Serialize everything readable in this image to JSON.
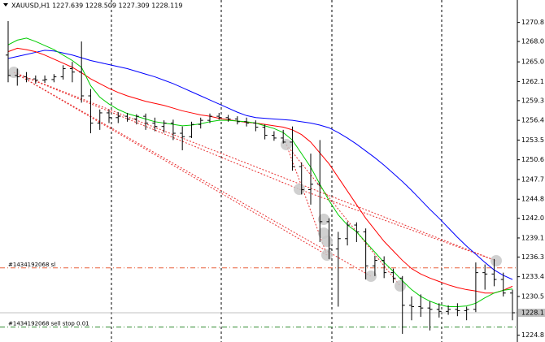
{
  "chart_data": {
    "type": "ohlc",
    "title": "XAUUSD,H1  1227.639 1228.509 1227.309 1228.119",
    "ylim": [
      1223.8,
      1274.1
    ],
    "yticks": [
      1270.8,
      {
        "value": 1268,
        "label": "1268.0"
      },
      {
        "value": 1265,
        "label": "1265.0"
      },
      1262.1,
      1259.3,
      1256.4,
      1253.5,
      1250.6,
      1247.7,
      1244.8,
      {
        "value": 1242,
        "label": "1242.0"
      },
      1239.1,
      1236.3,
      1233.4,
      1230.5,
      1224.8
    ],
    "current_price": 1228.1,
    "bar_color": "#000000",
    "ohlc": [
      [
        1266,
        1271,
        1262,
        1263
      ],
      [
        1263,
        1264,
        1261.5,
        1262.8
      ],
      [
        1262.8,
        1263.5,
        1262,
        1262.5
      ],
      [
        1262.5,
        1263,
        1261.8,
        1262.3
      ],
      [
        1262.3,
        1263,
        1261.9,
        1262.4
      ],
      [
        1262.4,
        1263.2,
        1262,
        1262.8
      ],
      [
        1262.8,
        1264.5,
        1262.4,
        1264
      ],
      [
        1264,
        1265,
        1262,
        1263.5
      ],
      [
        1263.5,
        1268,
        1259,
        1260
      ],
      [
        1260,
        1261,
        1254.5,
        1256
      ],
      [
        1256,
        1258,
        1255,
        1257.5
      ],
      [
        1257.5,
        1258,
        1256,
        1256.8
      ],
      [
        1256.8,
        1257.6,
        1256,
        1257
      ],
      [
        1257,
        1257.5,
        1256.2,
        1256.6
      ],
      [
        1256.6,
        1257.3,
        1255.8,
        1257
      ],
      [
        1257,
        1257.4,
        1255,
        1256
      ],
      [
        1256,
        1256.8,
        1254.8,
        1255.5
      ],
      [
        1255.5,
        1256.4,
        1254.6,
        1256
      ],
      [
        1256,
        1256.5,
        1253.5,
        1254.5
      ],
      [
        1254.5,
        1255.5,
        1252,
        1254
      ],
      [
        1254,
        1256.2,
        1253.8,
        1255.8
      ],
      [
        1255.8,
        1256.8,
        1255.2,
        1256.4
      ],
      [
        1256.4,
        1257.4,
        1256,
        1257
      ],
      [
        1257,
        1257.5,
        1256.5,
        1256.8
      ],
      [
        1256.8,
        1257.2,
        1256.2,
        1256.6
      ],
      [
        1256.6,
        1257,
        1255.8,
        1256.2
      ],
      [
        1256.2,
        1256.8,
        1255.5,
        1256
      ],
      [
        1256,
        1256.4,
        1254.8,
        1255.4
      ],
      [
        1255.4,
        1255.8,
        1253.6,
        1254.2
      ],
      [
        1254.2,
        1254.8,
        1253.4,
        1253.8
      ],
      [
        1253.8,
        1255,
        1253,
        1253.2
      ],
      [
        1253.2,
        1255.5,
        1249,
        1249.6
      ],
      [
        1249.6,
        1250.2,
        1245.5,
        1246.2
      ],
      [
        1246.2,
        1251.5,
        1244,
        1247
      ],
      [
        1247,
        1253.5,
        1238.5,
        1241.5
      ],
      [
        1241.5,
        1242,
        1236,
        1237.5
      ],
      [
        1237.5,
        1240,
        1229,
        1239
      ],
      [
        1239,
        1241.5,
        1238,
        1241
      ],
      [
        1241,
        1241.4,
        1238.5,
        1240
      ],
      [
        1240,
        1240.5,
        1233,
        1235
      ],
      [
        1235,
        1236.5,
        1233.5,
        1235.8
      ],
      [
        1235.8,
        1236.4,
        1233.2,
        1234
      ],
      [
        1234,
        1234.6,
        1232.5,
        1233.2
      ],
      [
        1233.2,
        1233.5,
        1225,
        1229.2
      ],
      [
        1229.2,
        1230.5,
        1227,
        1229
      ],
      [
        1229,
        1230.8,
        1227.5,
        1228.8
      ],
      [
        1228.8,
        1229.8,
        1225.5,
        1228.6
      ],
      [
        1228.6,
        1229.5,
        1227.4,
        1228.3
      ],
      [
        1228.3,
        1229.2,
        1227.8,
        1228.6
      ],
      [
        1228.6,
        1229.5,
        1227.6,
        1228.4
      ],
      [
        1228.4,
        1229,
        1227,
        1228.6
      ],
      [
        1228.6,
        1235.5,
        1228.2,
        1234
      ],
      [
        1234,
        1235.2,
        1231.5,
        1233.8
      ],
      [
        1233.8,
        1236,
        1232,
        1233
      ],
      [
        1233,
        1234,
        1230.5,
        1231
      ],
      [
        1231,
        1231.5,
        1227,
        1228.1
      ]
    ],
    "series": [
      {
        "color": "#0000ff",
        "values": [
          1265.5,
          1265.8,
          1266.1,
          1266.4,
          1266.7,
          1266.6,
          1266.3,
          1266,
          1265.6,
          1265.2,
          1264.9,
          1264.6,
          1264.3,
          1264,
          1263.6,
          1263.2,
          1262.8,
          1262.3,
          1261.8,
          1261.2,
          1260.6,
          1260,
          1259.4,
          1258.8,
          1258.2,
          1257.6,
          1257.1,
          1256.8,
          1256.7,
          1256.6,
          1256.5,
          1256.4,
          1256.2,
          1256,
          1255.7,
          1255.3,
          1254.6,
          1253.8,
          1252.9,
          1251.9,
          1250.9,
          1249.8,
          1248.6,
          1247.4,
          1246.1,
          1244.7,
          1243.3,
          1242,
          1240.6,
          1239.2,
          1237.9,
          1236.7,
          1235.5,
          1234.4,
          1233.6,
          1233
        ]
      },
      {
        "color": "#ff0000",
        "values": [
          1266.5,
          1267,
          1266.8,
          1266.5,
          1266,
          1265.4,
          1264.8,
          1264.2,
          1263.4,
          1262.5,
          1261.8,
          1261.1,
          1260.5,
          1260,
          1259.6,
          1259.2,
          1258.9,
          1258.6,
          1258.2,
          1257.8,
          1257.5,
          1257.2,
          1257,
          1256.7,
          1256.5,
          1256.3,
          1256.1,
          1256,
          1255.8,
          1255.6,
          1255.4,
          1255,
          1254.3,
          1253.2,
          1251.6,
          1250,
          1248,
          1246,
          1244,
          1242,
          1240.3,
          1238.6,
          1237.2,
          1235.8,
          1234.6,
          1233.8,
          1233.2,
          1232.7,
          1232.2,
          1231.8,
          1231.5,
          1231.3,
          1231,
          1231,
          1231.4,
          1232
        ]
      },
      {
        "color": "#00cc00",
        "values": [
          1267.5,
          1268.2,
          1268.5,
          1268,
          1267.4,
          1266.8,
          1266,
          1265.2,
          1264.2,
          1261.5,
          1259.8,
          1258.8,
          1258,
          1257.4,
          1257,
          1256.6,
          1256.2,
          1256,
          1255.8,
          1255.6,
          1255.7,
          1255.9,
          1256.2,
          1256.4,
          1256.4,
          1256.3,
          1256.2,
          1256,
          1255.6,
          1255.2,
          1254.6,
          1253.5,
          1251.5,
          1249.5,
          1247,
          1244.6,
          1242.5,
          1241,
          1240,
          1238.5,
          1237,
          1235.5,
          1234.2,
          1232.8,
          1231.5,
          1230.5,
          1229.8,
          1229.3,
          1229,
          1229,
          1229.1,
          1229.5,
          1230.3,
          1231,
          1231.4,
          1231.6
        ]
      }
    ],
    "orders": [
      {
        "label": "#1434192068 sl",
        "price": 1234.7,
        "color": "#e8603c"
      },
      {
        "label": "#1434192068 sell stop 0.01",
        "price": 1226,
        "color": "#2e8b2e"
      }
    ]
  }
}
